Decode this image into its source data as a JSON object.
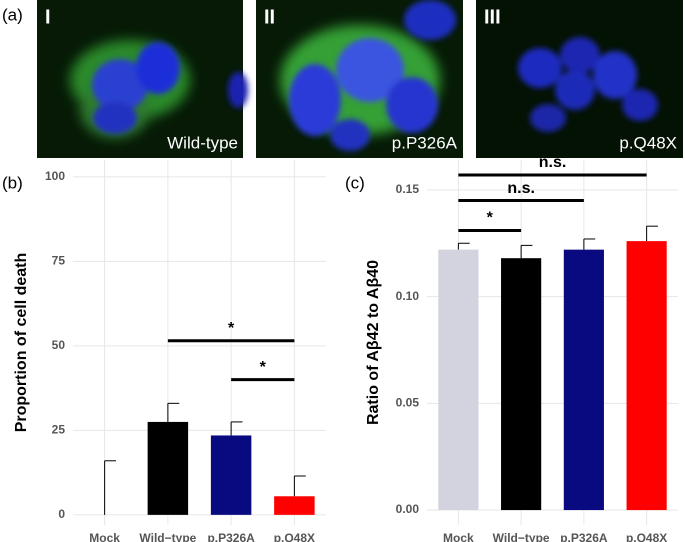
{
  "figure_a": {
    "panel": "(a)",
    "images": [
      {
        "numeral": "I",
        "label": "Wild-type"
      },
      {
        "numeral": "II",
        "label": "p.P326A"
      },
      {
        "numeral": "III",
        "label": "p.Q48X"
      }
    ]
  },
  "chart_data": [
    {
      "type": "bar",
      "panel": "(b)",
      "y_label": "Proportion of cell death",
      "categories": [
        "Mock",
        "Wild−type",
        "p.P326A",
        "p.Q48X"
      ],
      "values": [
        0,
        27.5,
        23.5,
        5.5
      ],
      "errors": [
        16,
        5.5,
        4,
        6
      ],
      "colors": [
        "#d3d3df",
        "#000000",
        "#0a0a80",
        "#ff0000"
      ],
      "ylim": [
        -3,
        105
      ],
      "yticks": [
        0,
        25,
        50,
        75,
        100
      ],
      "grid": true,
      "annotations": [
        {
          "label": "*",
          "from": 1,
          "to": 3,
          "y": 51.5
        },
        {
          "label": "*",
          "from": 2,
          "to": 3,
          "y": 40
        }
      ]
    },
    {
      "type": "bar",
      "panel": "(c)",
      "y_label": "Ratio of Aβ42 to Aβ40",
      "categories": [
        "Mock",
        "Wild−type",
        "p.P326A",
        "p.Q48X"
      ],
      "values": [
        0.122,
        0.118,
        0.122,
        0.126
      ],
      "errors": [
        0.003,
        0.006,
        0.005,
        0.007
      ],
      "colors": [
        "#d3d3df",
        "#000000",
        "#0a0a80",
        "#ff0000"
      ],
      "ylim": [
        -0.007,
        0.164
      ],
      "yticks": [
        {
          "value": 0,
          "label": "0.00"
        },
        {
          "value": 0.05,
          "label": "0.05"
        },
        {
          "value": 0.1,
          "label": "0.10"
        },
        {
          "value": 0.15,
          "label": "0.15"
        }
      ],
      "grid": true,
      "annotations": [
        {
          "label": "*",
          "from": 0,
          "to": 1,
          "y": 0.131
        },
        {
          "label": "n.s.",
          "from": 0,
          "to": 2,
          "y": 0.145
        },
        {
          "label": "n.s.",
          "from": 0,
          "to": 3,
          "y": 0.157
        }
      ]
    }
  ]
}
